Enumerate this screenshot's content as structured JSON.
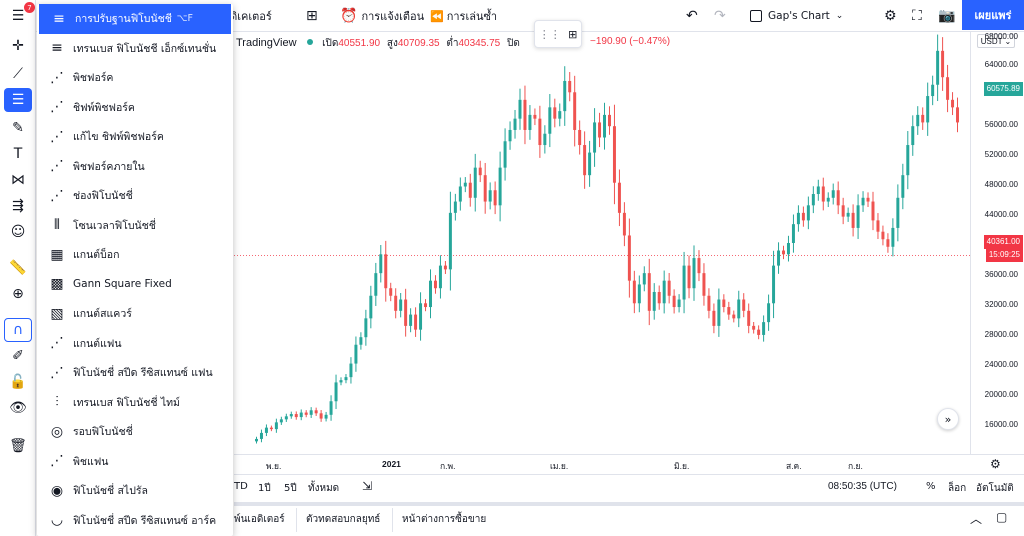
{
  "topbar": {
    "indicators_label": "อินดิเคเตอร์",
    "alerts_label": "การแจ้งเตือน",
    "replay_label": "การเล่นซ้ำ",
    "layout_name": "Gap's Chart",
    "publish_label": "เผยแพร่"
  },
  "left_toolbar": {
    "badge_count": "7"
  },
  "fib_menu": {
    "items": [
      {
        "label": "การปรับฐานฟิโบนัชชี",
        "shortcut": "⌥F",
        "icon": "fib-retracement-icon"
      },
      {
        "label": "เทรนเบส ฟิโบนัชชี เอ็กซ์เทนชั่น",
        "icon": "trend-fib-extension-icon"
      },
      {
        "label": "พิชฟอร์ค",
        "icon": "pitchfork-icon"
      },
      {
        "label": "ชิฟพ์พิชฟอร์ค",
        "icon": "schiff-pitchfork-icon"
      },
      {
        "label": "แก้ไข ชิฟพ์พิชฟอร์ค",
        "icon": "modified-schiff-pitchfork-icon"
      },
      {
        "label": "พิชฟอร์คภายใน",
        "icon": "inside-pitchfork-icon"
      },
      {
        "label": "ช่องฟิโบนัชชี่",
        "icon": "fib-channel-icon"
      },
      {
        "label": "โซนเวลาฟิโบนัชชี่",
        "icon": "fib-timezone-icon"
      },
      {
        "label": "แกนต์บ็อก",
        "icon": "gann-box-icon"
      },
      {
        "label": "Gann Square Fixed",
        "icon": "gann-square-fixed-icon"
      },
      {
        "label": "แกนต์สแควร์",
        "icon": "gann-square-icon"
      },
      {
        "label": "แกนต์แฟน",
        "icon": "gann-fan-icon"
      },
      {
        "label": "ฟิโบนัชชี่ สปีด รีซิสแทนซ์ แฟน",
        "icon": "fib-speed-fan-icon"
      },
      {
        "label": "เทรนเบส ฟิโบนัชชี่ ไทม์",
        "icon": "trend-fib-time-icon"
      },
      {
        "label": "รอบฟิโบนัชชี่",
        "icon": "fib-circles-icon"
      },
      {
        "label": "พิชแฟน",
        "icon": "pitchfan-icon"
      },
      {
        "label": "ฟิโบนัชชี่ สไปรัล",
        "icon": "fib-spiral-icon"
      },
      {
        "label": "ฟิโบนัชชี่ สปีด รีซิสแทนซ์ อาร์ค",
        "icon": "fib-speed-arc-icon"
      }
    ]
  },
  "legend": {
    "brand": "TradingView",
    "open_label": "เปิด",
    "open": "40551.90",
    "high_label": "สูง",
    "high": "40709.35",
    "low_label": "ต่ำ",
    "low": "40345.75",
    "close_label": "ปิด",
    "change": "−190.90 (−0.47%)"
  },
  "price_axis": {
    "currency": "USDT",
    "labels": [
      "68000.00",
      "64000.00",
      "56000.00",
      "52000.00",
      "48000.00",
      "44000.00",
      "36000.00",
      "32000.00",
      "28000.00",
      "24000.00",
      "20000.00",
      "16000.00"
    ],
    "tag_high": "60575.89",
    "tag_current": "40361.00",
    "tag_countdown": "15:09:25"
  },
  "time_axis": {
    "labels": [
      "พ.ย.",
      "2021",
      "ก.พ.",
      "เม.ย.",
      "มิ.ย.",
      "ส.ค.",
      "ก.ย."
    ]
  },
  "bottom": {
    "ranges": [
      "TD",
      "1ปี",
      "5ปี",
      "ทั้งหมด"
    ],
    "clock": "08:50:35 (UTC)",
    "percent": "%",
    "log": "ล็อก",
    "auto": "อัตโนมัติ",
    "tabs": [
      "พ์นเอดิเตอร์",
      "ตัวทดสอบกลยุทธ์",
      "หน้าต่างการซื้อขาย"
    ]
  },
  "colors": {
    "up": "#26a69a",
    "down": "#ef5350",
    "accent": "#2962ff"
  },
  "chart_data": {
    "type": "candlestick",
    "ylim": [
      14000,
      70000
    ],
    "closes": [
      16000,
      16800,
      17500,
      17300,
      18200,
      18600,
      19000,
      19300,
      18900,
      19500,
      19200,
      19800,
      19400,
      18700,
      19200,
      21000,
      23500,
      23800,
      24200,
      26000,
      28500,
      29500,
      32000,
      35000,
      38000,
      40500,
      36000,
      35000,
      33000,
      34500,
      31000,
      32500,
      30500,
      34000,
      33500,
      37000,
      36000,
      39000,
      38500,
      46000,
      47500,
      49500,
      50000,
      48000,
      52000,
      51000,
      47500,
      49000,
      47000,
      52000,
      55500,
      57000,
      58500,
      61000,
      57000,
      59000,
      58500,
      55000,
      56500,
      60000,
      58500,
      59500,
      63500,
      62000,
      57000,
      55000,
      51000,
      54000,
      58000,
      56000,
      59000,
      57500,
      50000,
      46000,
      43000,
      37000,
      34000,
      36500,
      38000,
      33000,
      35500,
      34000,
      37000,
      35000,
      33500,
      34500,
      39000,
      36000,
      40000,
      38000,
      35000,
      33000,
      31000,
      34500,
      33500,
      32500,
      32000,
      34500,
      33000,
      31000,
      30500,
      29800,
      31500,
      34000,
      39000,
      41000,
      40500,
      42000,
      44500,
      46000,
      45000,
      47000,
      48500,
      49500,
      47500,
      48000,
      49000,
      47000,
      45500,
      46000,
      44000,
      47000,
      48000,
      47500,
      45000,
      43500,
      42500,
      41500,
      44000,
      48000,
      51000,
      55000,
      57500,
      59000,
      58000,
      61500,
      63000,
      67500,
      64000,
      61000,
      60000,
      58000
    ]
  }
}
